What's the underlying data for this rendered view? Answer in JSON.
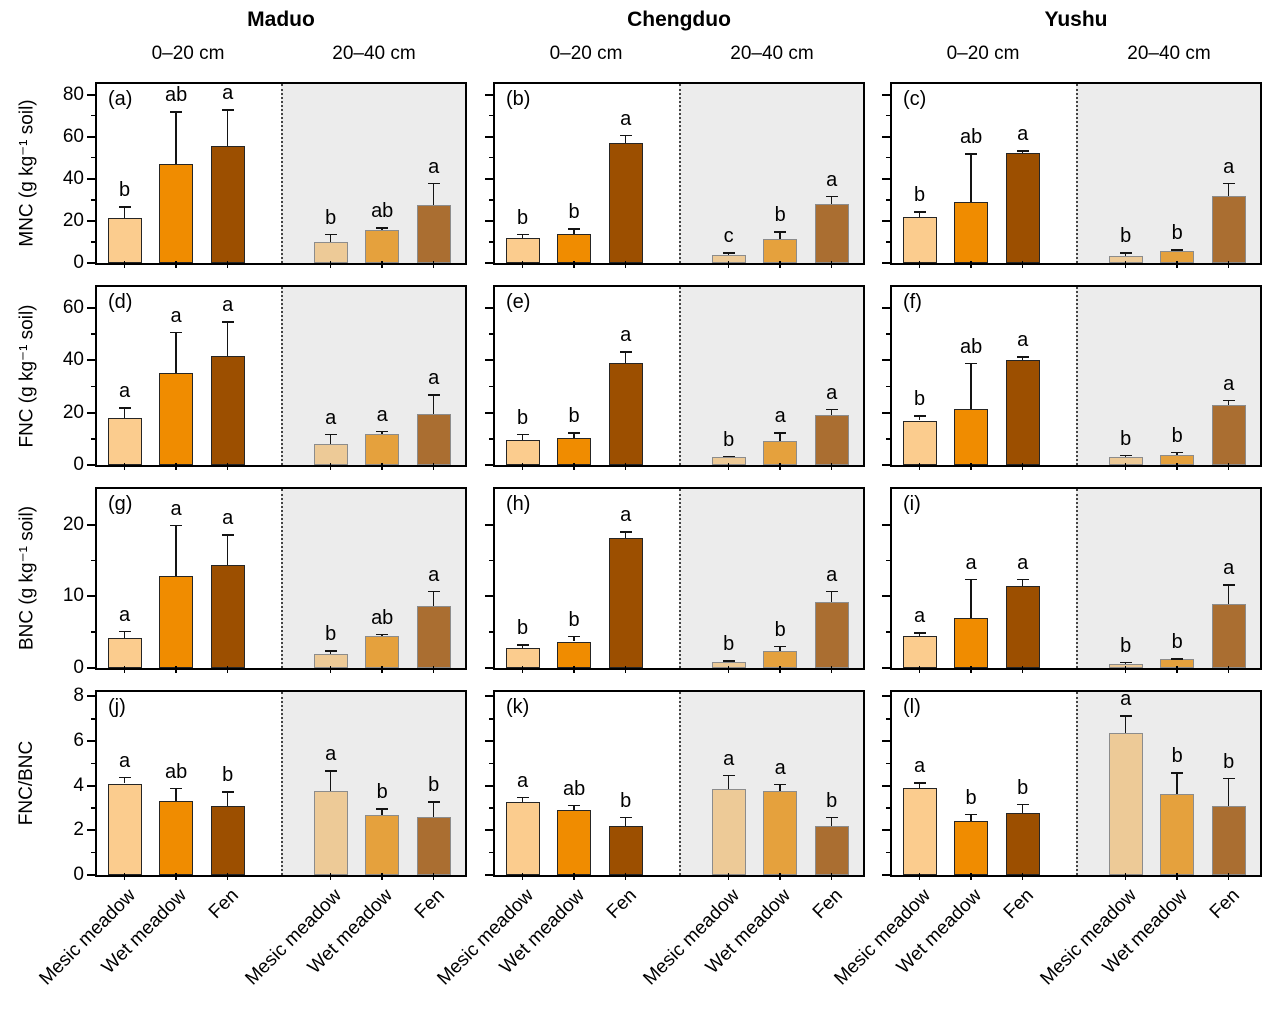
{
  "chart_data": {
    "type": "bar",
    "title": "",
    "sites": [
      "Maduo",
      "Chengduo",
      "Yushu"
    ],
    "depths": [
      "0–20 cm",
      "20–40 cm"
    ],
    "categories": [
      "Mesic meadow",
      "Wet meadow",
      "Fen"
    ],
    "legend": "none",
    "grid": "off",
    "colors": {
      "topsoil_bars": [
        "#FBCC8E",
        "#F08C00",
        "#9C4F00"
      ],
      "subsoil_bars": [
        "#EDCA97",
        "#E5A13D",
        "#AA6E31"
      ],
      "topsoil_bar_border": "#262626",
      "subsoil_bar_border": "#8C8C8C",
      "subsoil_background": "#ECECEC",
      "error_bar": "#141414"
    },
    "rows": [
      {
        "ylabel": "MNC (g kg⁻¹ soil)",
        "ylim": [
          0,
          85
        ],
        "yticks": [
          0,
          20,
          40,
          60,
          80
        ],
        "yminor": [
          10,
          30,
          50,
          70
        ],
        "panels": [
          {
            "label": "(a)",
            "site": "Maduo",
            "groups": [
              {
                "depth": "0–20 cm",
                "values": [
                  21.5,
                  47,
                  55.5
                ],
                "errors": [
                  5.5,
                  25,
                  17.5
                ],
                "letters": [
                  "b",
                  "ab",
                  "a"
                ]
              },
              {
                "depth": "20–40 cm",
                "values": [
                  10,
                  15.5,
                  27.5
                ],
                "errors": [
                  4,
                  1.5,
                  10.5
                ],
                "letters": [
                  "b",
                  "ab",
                  "a"
                ]
              }
            ]
          },
          {
            "label": "(b)",
            "site": "Chengduo",
            "groups": [
              {
                "depth": "0–20 cm",
                "values": [
                  12,
                  14,
                  57
                ],
                "errors": [
                  2,
                  2.5,
                  4
                ],
                "letters": [
                  "b",
                  "b",
                  "a"
                ]
              },
              {
                "depth": "20–40 cm",
                "values": [
                  4,
                  11.5,
                  28
                ],
                "errors": [
                  1,
                  3.5,
                  4
                ],
                "letters": [
                  "c",
                  "b",
                  "a"
                ]
              }
            ]
          },
          {
            "label": "(c)",
            "site": "Yushu",
            "groups": [
              {
                "depth": "0–20 cm",
                "values": [
                  22,
                  29,
                  52
                ],
                "errors": [
                  2.5,
                  23,
                  1.5
                ],
                "letters": [
                  "b",
                  "ab",
                  "a"
                ]
              },
              {
                "depth": "20–40 cm",
                "values": [
                  3.5,
                  5.5,
                  32
                ],
                "errors": [
                  1.5,
                  1,
                  6
                ],
                "letters": [
                  "b",
                  "b",
                  "a"
                ]
              }
            ]
          }
        ]
      },
      {
        "ylabel": "FNC (g kg⁻¹ soil)",
        "ylim": [
          0,
          68
        ],
        "yticks": [
          0,
          20,
          40,
          60
        ],
        "yminor": [
          10,
          30,
          50
        ],
        "panels": [
          {
            "label": "(d)",
            "site": "Maduo",
            "groups": [
              {
                "depth": "0–20 cm",
                "values": [
                  18,
                  35,
                  41.5
                ],
                "errors": [
                  4,
                  16,
                  13.5
                ],
                "letters": [
                  "a",
                  "a",
                  "a"
                ]
              },
              {
                "depth": "20–40 cm",
                "values": [
                  8,
                  12,
                  19.5
                ],
                "errors": [
                  4,
                  1,
                  7.5
                ],
                "letters": [
                  "a",
                  "a",
                  "a"
                ]
              }
            ]
          },
          {
            "label": "(e)",
            "site": "Chengduo",
            "groups": [
              {
                "depth": "0–20 cm",
                "values": [
                  9.5,
                  10.5,
                  39
                ],
                "errors": [
                  2.5,
                  2,
                  4.5
                ],
                "letters": [
                  "b",
                  "b",
                  "a"
                ]
              },
              {
                "depth": "20–40 cm",
                "values": [
                  3,
                  9,
                  19
                ],
                "errors": [
                  0.5,
                  3.5,
                  2.5
                ],
                "letters": [
                  "b",
                  "a",
                  "a"
                ]
              }
            ]
          },
          {
            "label": "(f)",
            "site": "Yushu",
            "groups": [
              {
                "depth": "0–20 cm",
                "values": [
                  17,
                  21.5,
                  40
                ],
                "errors": [
                  2,
                  17.5,
                  1.5
                ],
                "letters": [
                  "b",
                  "ab",
                  "a"
                ]
              },
              {
                "depth": "20–40 cm",
                "values": [
                  3,
                  4,
                  23
                ],
                "errors": [
                  1,
                  1,
                  2
                ],
                "letters": [
                  "b",
                  "b",
                  "a"
                ]
              }
            ]
          }
        ]
      },
      {
        "ylabel": "BNC (g kg⁻¹ soil)",
        "ylim": [
          0,
          25
        ],
        "yticks": [
          0,
          10,
          20
        ],
        "yminor": [
          5,
          15
        ],
        "panels": [
          {
            "label": "(g)",
            "site": "Maduo",
            "groups": [
              {
                "depth": "0–20 cm",
                "values": [
                  4.2,
                  12.8,
                  14.4
                ],
                "errors": [
                  1,
                  7.2,
                  4.3
                ],
                "letters": [
                  "a",
                  "a",
                  "a"
                ]
              },
              {
                "depth": "20–40 cm",
                "values": [
                  1.9,
                  4.4,
                  8.6
                ],
                "errors": [
                  0.6,
                  0.4,
                  2.2
                ],
                "letters": [
                  "b",
                  "ab",
                  "a"
                ]
              }
            ]
          },
          {
            "label": "(h)",
            "site": "Chengduo",
            "groups": [
              {
                "depth": "0–20 cm",
                "values": [
                  2.8,
                  3.7,
                  18.2
                ],
                "errors": [
                  0.5,
                  0.8,
                  0.9
                ],
                "letters": [
                  "b",
                  "b",
                  "a"
                ]
              },
              {
                "depth": "20–40 cm",
                "values": [
                  0.9,
                  2.4,
                  9.2
                ],
                "errors": [
                  0.2,
                  0.7,
                  1.6
                ],
                "letters": [
                  "b",
                  "b",
                  "a"
                ]
              }
            ]
          },
          {
            "label": "(i)",
            "site": "Yushu",
            "groups": [
              {
                "depth": "0–20 cm",
                "values": [
                  4.4,
                  7,
                  11.5
                ],
                "errors": [
                  0.6,
                  5.5,
                  1
                ],
                "letters": [
                  "a",
                  "a",
                  "a"
                ]
              },
              {
                "depth": "20–40 cm",
                "values": [
                  0.5,
                  1.2,
                  9
                ],
                "errors": [
                  0.4,
                  0.15,
                  2.7
                ],
                "letters": [
                  "b",
                  "b",
                  "a"
                ]
              }
            ]
          }
        ]
      },
      {
        "ylabel": "FNC/BNC",
        "ylim": [
          0,
          8.2
        ],
        "yticks": [
          0,
          2,
          4,
          6,
          8
        ],
        "yminor": [
          1,
          3,
          5,
          7
        ],
        "panels": [
          {
            "label": "(j)",
            "site": "Maduo",
            "groups": [
              {
                "depth": "0–20 cm",
                "values": [
                  4.1,
                  3.3,
                  3.1
                ],
                "errors": [
                  0.3,
                  0.6,
                  0.65
                ],
                "letters": [
                  "a",
                  "ab",
                  "b"
                ]
              },
              {
                "depth": "20–40 cm",
                "values": [
                  3.75,
                  2.7,
                  2.6
                ],
                "errors": [
                  0.95,
                  0.3,
                  0.7
                ],
                "letters": [
                  "a",
                  "b",
                  "b"
                ]
              }
            ]
          },
          {
            "label": "(k)",
            "site": "Chengduo",
            "groups": [
              {
                "depth": "0–20 cm",
                "values": [
                  3.25,
                  2.9,
                  2.2
                ],
                "errors": [
                  0.25,
                  0.25,
                  0.4
                ],
                "letters": [
                  "a",
                  "ab",
                  "b"
                ]
              },
              {
                "depth": "20–40 cm",
                "values": [
                  3.85,
                  3.75,
                  2.2
                ],
                "errors": [
                  0.65,
                  0.35,
                  0.4
                ],
                "letters": [
                  "a",
                  "a",
                  "b"
                ]
              }
            ]
          },
          {
            "label": "(l)",
            "site": "Yushu",
            "groups": [
              {
                "depth": "0–20 cm",
                "values": [
                  3.9,
                  2.4,
                  2.8
                ],
                "errors": [
                  0.25,
                  0.35,
                  0.4
                ],
                "letters": [
                  "a",
                  "b",
                  "b"
                ]
              },
              {
                "depth": "20–40 cm",
                "values": [
                  6.35,
                  3.65,
                  3.1
                ],
                "errors": [
                  0.8,
                  0.95,
                  1.25
                ],
                "letters": [
                  "a",
                  "b",
                  "b"
                ]
              }
            ]
          }
        ]
      }
    ]
  }
}
